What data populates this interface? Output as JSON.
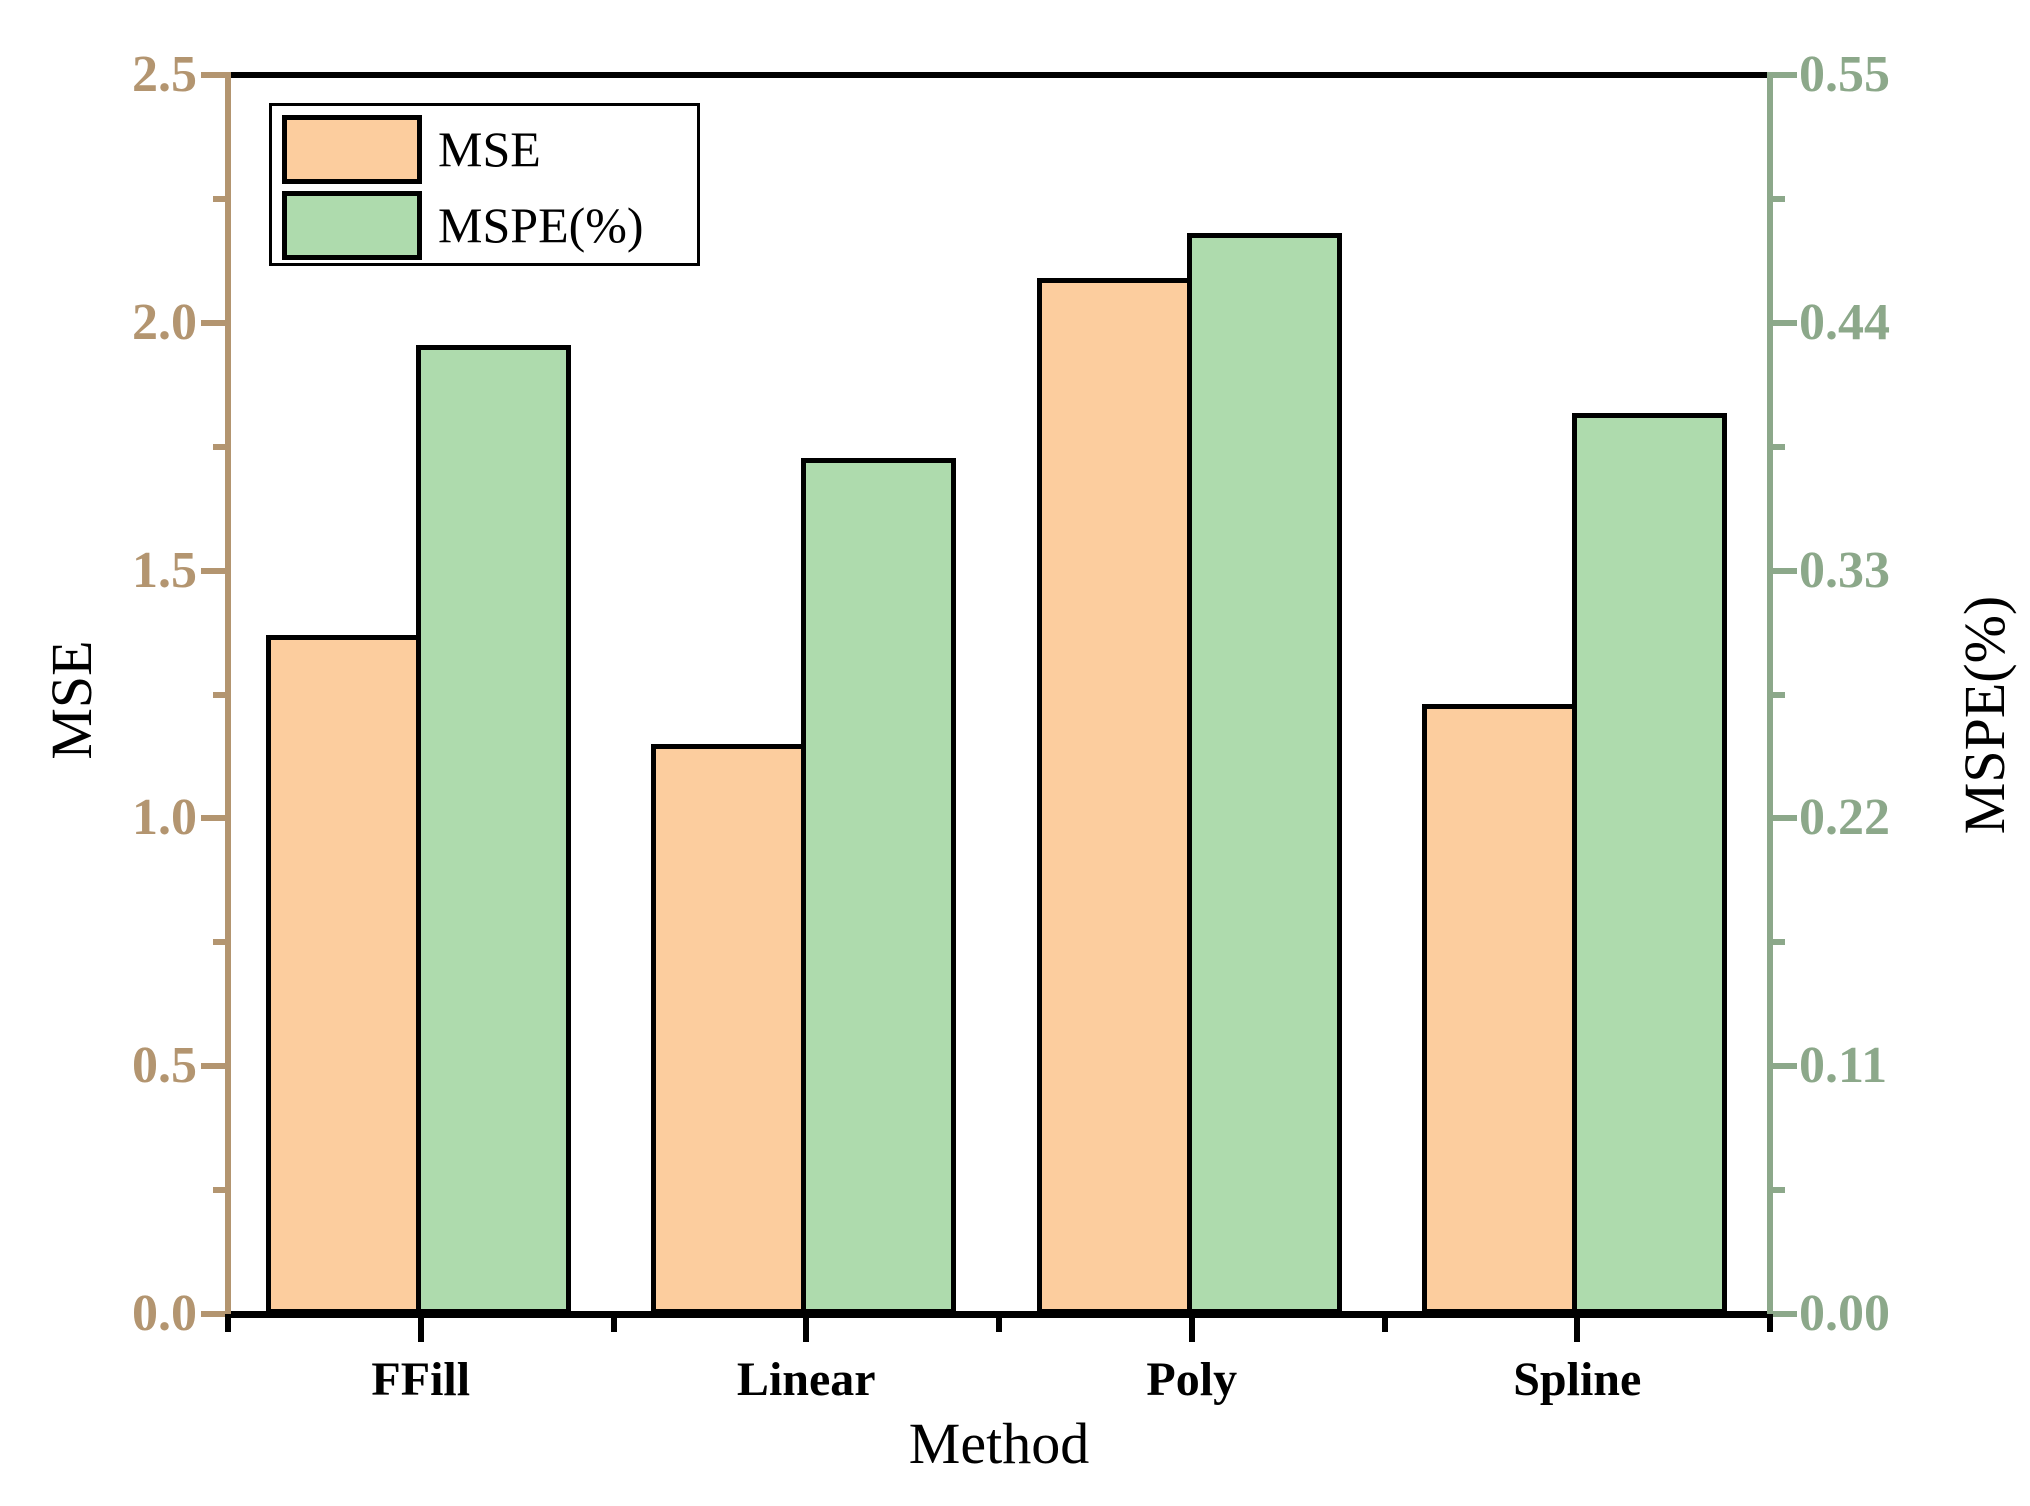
{
  "chart_data": {
    "type": "bar",
    "title": "",
    "xlabel": "Method",
    "categories": [
      "FFill",
      "Linear",
      "Poly",
      "Spline"
    ],
    "series": [
      {
        "name": "MSE",
        "axis": "left",
        "color": "#FCCD9E",
        "values": [
          1.37,
          1.15,
          2.09,
          1.23
        ]
      },
      {
        "name": "MSPE(%)",
        "axis": "right",
        "color": "#AEDBAD",
        "values": [
          0.43,
          0.38,
          0.48,
          0.4
        ]
      }
    ],
    "left_axis": {
      "label": "MSE",
      "min": 0.0,
      "max": 2.5,
      "ticks": [
        "0.0",
        "0.5",
        "1.0",
        "1.5",
        "2.0",
        "2.5"
      ],
      "minor_tick_step": 0.25,
      "color": "#B39570"
    },
    "right_axis": {
      "label": "MSPE(%)",
      "min": 0.0,
      "max": 0.55,
      "ticks": [
        "0.00",
        "0.11",
        "0.22",
        "0.33",
        "0.44",
        "0.55"
      ],
      "minor_tick_step": 0.055,
      "color": "#8CA88A"
    },
    "legend": {
      "position": "upper-left",
      "entries": [
        "MSE",
        "MSPE(%)"
      ]
    },
    "grid": false,
    "bar_border_color": "#000000",
    "top_bottom_spine_color": "#000000"
  }
}
